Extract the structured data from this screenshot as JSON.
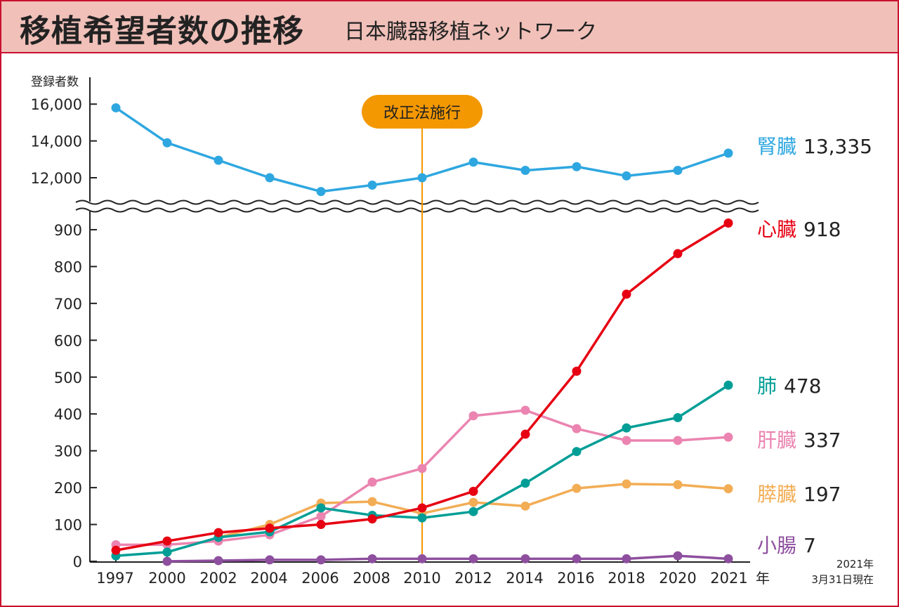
{
  "header": {
    "title": "移植希望者数の推移",
    "subtitle": "日本臓器移植ネットワーク"
  },
  "chart_data": {
    "type": "line",
    "ylabel": "登録者数",
    "xlabel": "年",
    "x": [
      "1997",
      "2000",
      "2002",
      "2004",
      "2006",
      "2008",
      "2010",
      "2012",
      "2014",
      "2016",
      "2018",
      "2020",
      "2021"
    ],
    "y_ticks_upper": [
      "12,000",
      "14,000",
      "16,000"
    ],
    "y_ticks_lower": [
      "0",
      "100",
      "200",
      "300",
      "400",
      "500",
      "600",
      "700",
      "800",
      "900"
    ],
    "annotation": {
      "x": "2010",
      "label": "改正法施行",
      "color": "#f39800"
    },
    "note": [
      "2021年",
      "3月31日現在"
    ],
    "series": [
      {
        "name": "腎臓",
        "final": "13,335",
        "color": "#2ea7e0",
        "axis": "upper",
        "values": [
          15800,
          13900,
          12950,
          12000,
          11250,
          11600,
          12000,
          12850,
          12400,
          12600,
          12100,
          12400,
          13335
        ]
      },
      {
        "name": "心臓",
        "final": "918",
        "color": "#e60012",
        "axis": "lower",
        "values": [
          30,
          55,
          78,
          90,
          100,
          115,
          145,
          190,
          345,
          516,
          725,
          835,
          918
        ]
      },
      {
        "name": "肺",
        "final": "478",
        "color": "#009e96",
        "axis": "lower",
        "values": [
          15,
          25,
          65,
          80,
          145,
          125,
          118,
          135,
          212,
          298,
          362,
          390,
          478
        ]
      },
      {
        "name": "肝臓",
        "final": "337",
        "color": "#eb84b0",
        "axis": "lower",
        "values": [
          45,
          45,
          55,
          72,
          122,
          215,
          252,
          395,
          410,
          360,
          328,
          328,
          337
        ]
      },
      {
        "name": "膵臓",
        "final": "197",
        "color": "#f2ad55",
        "axis": "lower",
        "values": [
          null,
          null,
          65,
          100,
          158,
          162,
          130,
          160,
          150,
          198,
          210,
          208,
          197
        ]
      },
      {
        "name": "小腸",
        "final": "7",
        "color": "#8e4f9e",
        "axis": "lower",
        "values": [
          null,
          0,
          2,
          4,
          4,
          7,
          7,
          7,
          7,
          7,
          7,
          15,
          7
        ]
      }
    ]
  }
}
